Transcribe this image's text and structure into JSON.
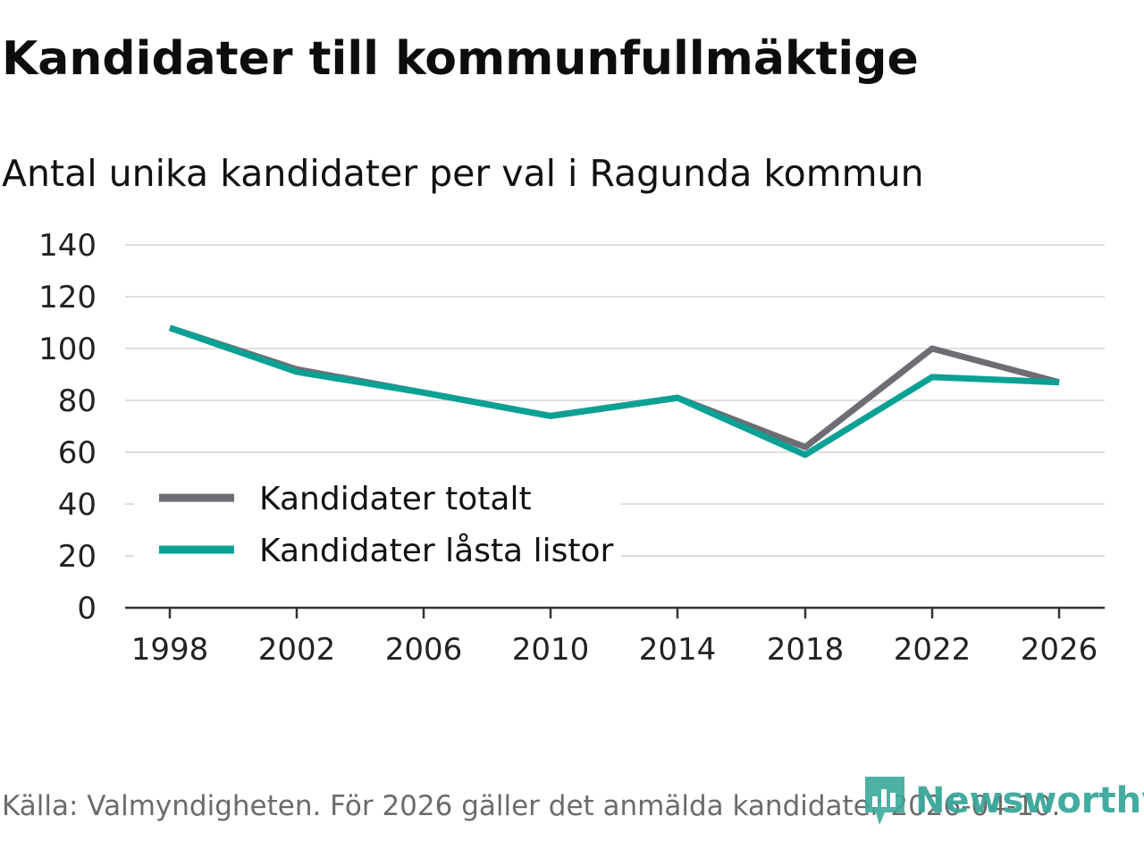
{
  "chart_data": {
    "type": "line",
    "title": "Kandidater till kommunfullmäktige",
    "subtitle": "Antal unika kandidater per val i Ragunda kommun",
    "x": [
      1998,
      2002,
      2006,
      2010,
      2014,
      2018,
      2022,
      2026
    ],
    "x_tick_labels": [
      "1998",
      "2002",
      "2006",
      "2010",
      "2014",
      "2018",
      "2022",
      "2026"
    ],
    "y_ticks": [
      "0",
      "20",
      "40",
      "60",
      "80",
      "100",
      "120",
      "140"
    ],
    "ylim": [
      0,
      140
    ],
    "grid": true,
    "legend_position": "bottom-left",
    "series": [
      {
        "name": "Kandidater totalt",
        "color": "#6e6d73",
        "values": [
          108,
          92,
          83,
          74,
          81,
          62,
          100,
          87
        ]
      },
      {
        "name": "Kandidater låsta listor",
        "color": "#0aa195",
        "values": [
          108,
          91,
          83,
          74,
          81,
          59,
          89,
          87
        ]
      }
    ],
    "source": "Källa: Valmyndigheten. För 2026 gäller det anmälda kandidater 2026-04-10.",
    "brand": "Newsworthy"
  }
}
